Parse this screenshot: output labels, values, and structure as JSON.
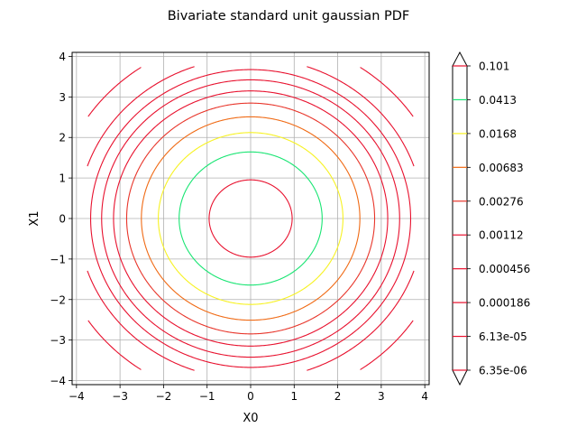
{
  "chart_data": {
    "type": "contour",
    "title": "Bivariate standard unit gaussian PDF",
    "xlabel": "X0",
    "ylabel": "X1",
    "xlim": [
      -4.1,
      4.1
    ],
    "ylim": [
      -4.1,
      4.1
    ],
    "xticks": [
      -4,
      -3,
      -2,
      -1,
      0,
      1,
      2,
      3,
      4
    ],
    "yticks": [
      -4,
      -3,
      -2,
      -1,
      0,
      1,
      2,
      3,
      4
    ],
    "xtick_labels": [
      "−4",
      "−3",
      "−2",
      "−1",
      "0",
      "1",
      "2",
      "3",
      "4"
    ],
    "ytick_labels": [
      "−4",
      "−3",
      "−2",
      "−1",
      "0",
      "1",
      "2",
      "3",
      "4"
    ],
    "grid": true,
    "domain": [
      -3.75,
      3.75
    ],
    "function": "exp(-(x0^2 + x1^2)/2) / (2*pi)",
    "levels": [
      {
        "label": "0.101",
        "value": 0.101,
        "color": "#e8112e"
      },
      {
        "label": "0.0413",
        "value": 0.0413,
        "color": "#19e573"
      },
      {
        "label": "0.0168",
        "value": 0.0168,
        "color": "#f7f223"
      },
      {
        "label": "0.00683",
        "value": 0.00683,
        "color": "#f06a14"
      },
      {
        "label": "0.00276",
        "value": 0.00276,
        "color": "#e8352a"
      },
      {
        "label": "0.00112",
        "value": 0.00112,
        "color": "#e8112e"
      },
      {
        "label": "0.000456",
        "value": 0.000456,
        "color": "#e8112e"
      },
      {
        "label": "0.000186",
        "value": 0.000186,
        "color": "#e8112e"
      },
      {
        "label": "6.13e-05",
        "value": 6.13e-05,
        "color": "#e8112e"
      },
      {
        "label": "6.35e-06",
        "value": 6.35e-06,
        "color": "#e8112e"
      }
    ],
    "colorbar": {
      "placement": "right",
      "extend": "both"
    }
  }
}
